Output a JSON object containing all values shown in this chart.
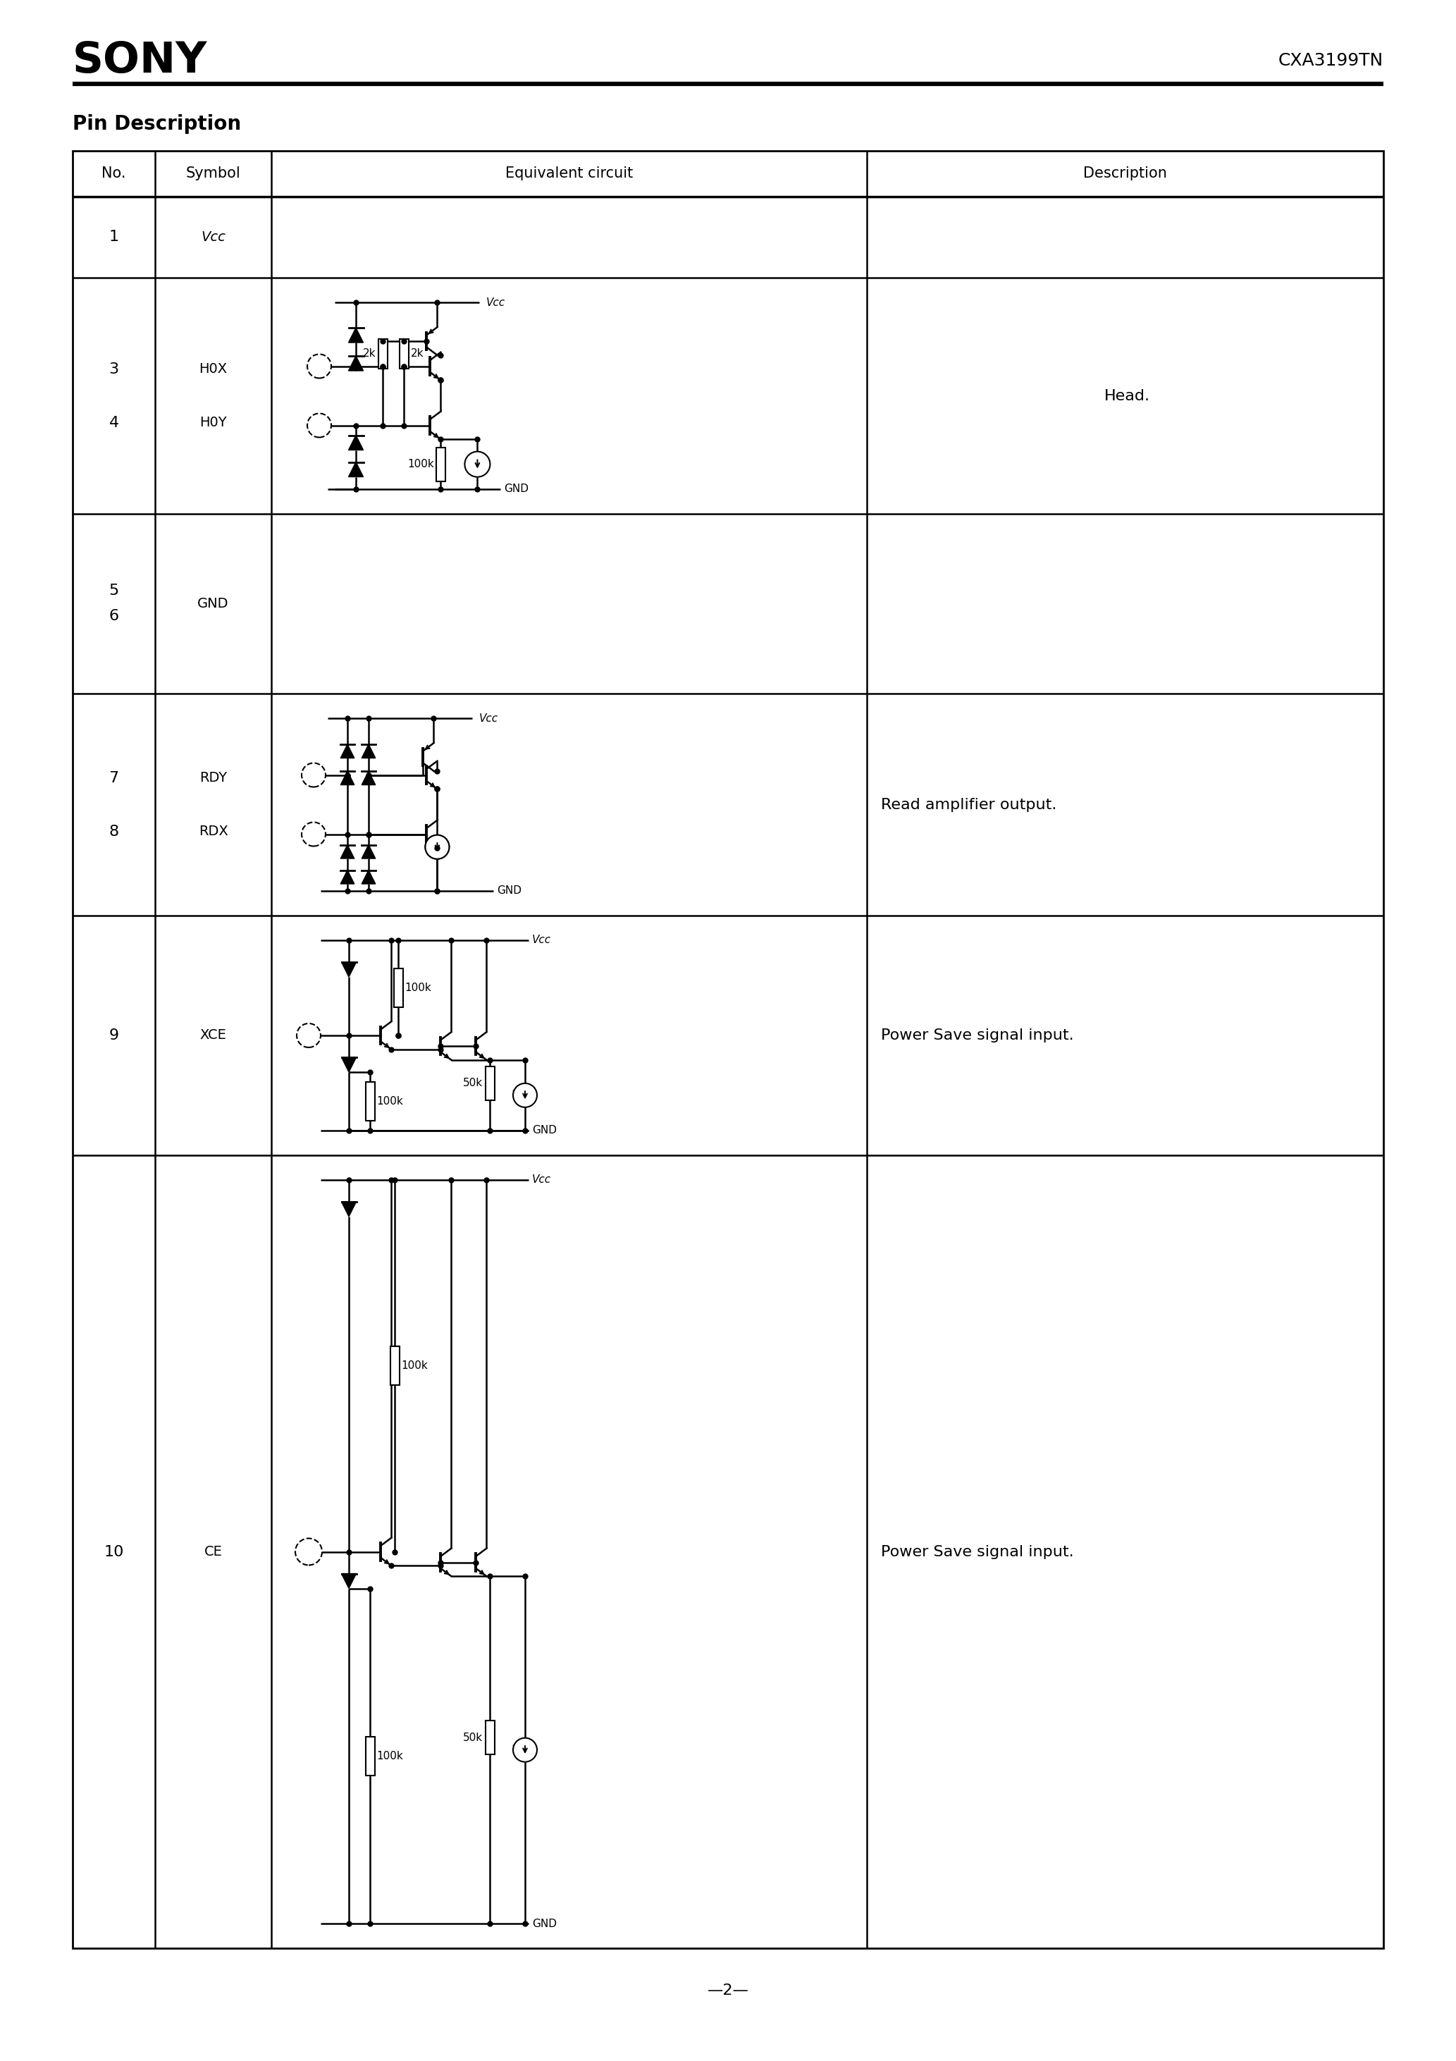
{
  "title": "SONY",
  "part_number": "CXA3199TN",
  "section_title": "Pin Description",
  "col_headers": [
    "No.",
    "Symbol",
    "Equivalent circuit",
    "Description"
  ],
  "footer": "—2—",
  "bg": "#ffffff",
  "black": "#000000"
}
